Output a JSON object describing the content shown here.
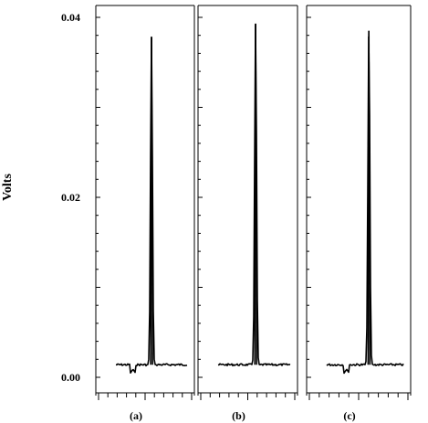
{
  "chart_data": {
    "type": "line",
    "ylabel": "Volts",
    "ylim": [
      0.0,
      0.04
    ],
    "yticks": [
      {
        "value": 0.04,
        "label": "0.04"
      },
      {
        "value": 0.02,
        "label": "0.02"
      },
      {
        "value": 0.0,
        "label": "0.00"
      }
    ],
    "panels": [
      {
        "label": "(a)",
        "baseline": 0.0014,
        "peak_value": 0.0378,
        "peak_position": 0.5,
        "dip_position": 0.24,
        "dip_value": 0.0009
      },
      {
        "label": "(b)",
        "baseline": 0.0014,
        "peak_value": 0.0393,
        "peak_position": 0.52,
        "dip_position": null,
        "dip_value": null
      },
      {
        "label": "(c)",
        "baseline": 0.0014,
        "peak_value": 0.0385,
        "peak_position": 0.55,
        "dip_position": 0.26,
        "dip_value": 0.0009
      }
    ],
    "colors": {
      "line": "#000000",
      "frame": "#000000",
      "background": "#ffffff"
    }
  }
}
